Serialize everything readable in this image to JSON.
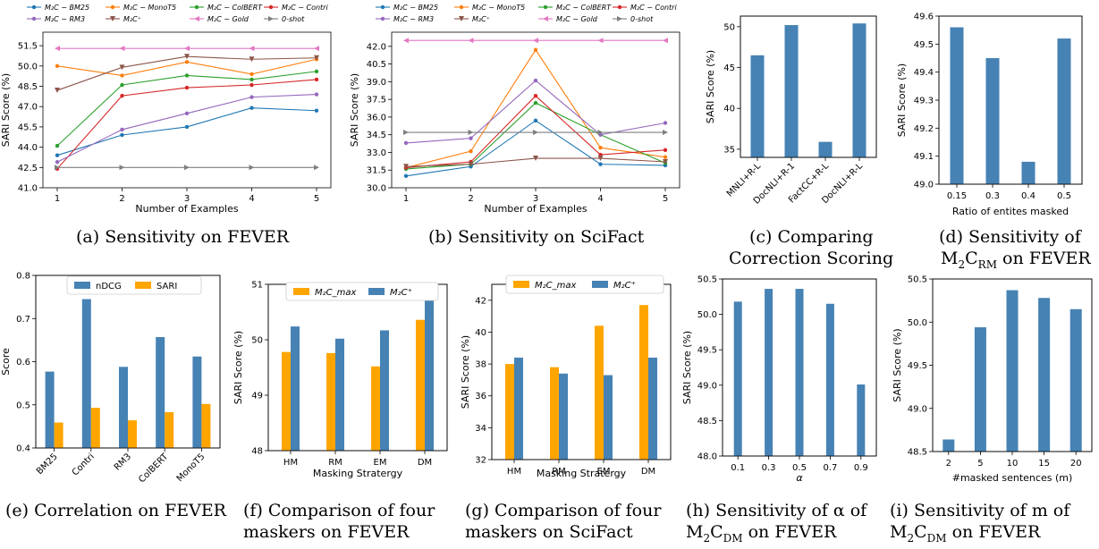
{
  "colors": {
    "bm25": "#1f77b4",
    "monot5": "#ff7f0e",
    "colbert": "#2ca02c",
    "contri": "#d62728",
    "rm3": "#9467bd",
    "m2cplus": "#8c564b",
    "gold": "#e377c2",
    "zeroshot": "#7f7f7f",
    "bar_blue": "#4682b4",
    "bar_orange": "#ffa500"
  },
  "captions": {
    "a": "(a) Sensitivity on FEVER",
    "b": "(b) Sensitivity on SciFact",
    "c1": "(c) Comparing",
    "c2": "Correction Scoring",
    "d1": "(d) Sensitivity of",
    "d2": "M₂C_RM on FEVER",
    "e": "(e) Correlation on FEVER",
    "f1": "(f) Comparison of four",
    "f2": "maskers on FEVER",
    "g1": "(g) Comparison of four",
    "g2": "maskers on SciFact",
    "h1": "(h) Sensitivity of α of",
    "h2": "M₂C_DM on FEVER",
    "i1": "(i) Sensitivity of m of",
    "i2": "M₂C_DM on FEVER"
  },
  "chart_data": [
    {
      "id": "a",
      "type": "line",
      "xlabel": "Number of Examples",
      "ylabel": "SARI Score (%)",
      "x": [
        1,
        2,
        3,
        4,
        5
      ],
      "ylim": [
        41.0,
        52.5
      ],
      "yticks": [
        41.0,
        42.5,
        44.0,
        45.5,
        47.0,
        48.5,
        50.0,
        51.5
      ],
      "legend": [
        "M₂C − BM25",
        "M₂C − MonoT5",
        "M₂C − ColBERT",
        "M₂C − Contri",
        "M₂C − RM3",
        "M₂C⁺",
        "M₂C − Gold",
        "0-shot"
      ],
      "series": [
        {
          "name": "M₂C − BM25",
          "key": "bm25",
          "marker": "circle",
          "values": [
            43.4,
            44.9,
            45.5,
            46.9,
            46.7
          ]
        },
        {
          "name": "M₂C − MonoT5",
          "key": "monot5",
          "marker": "circle",
          "values": [
            50.0,
            49.3,
            50.3,
            49.4,
            50.5
          ]
        },
        {
          "name": "M₂C − ColBERT",
          "key": "colbert",
          "marker": "circle",
          "values": [
            44.1,
            48.6,
            49.3,
            49.0,
            49.6
          ]
        },
        {
          "name": "M₂C − Contri",
          "key": "contri",
          "marker": "circle",
          "values": [
            42.4,
            47.8,
            48.4,
            48.6,
            49.0
          ]
        },
        {
          "name": "M₂C − RM3",
          "key": "rm3",
          "marker": "circle",
          "values": [
            42.9,
            45.3,
            46.5,
            47.7,
            47.9
          ]
        },
        {
          "name": "M₂C⁺",
          "key": "m2cplus",
          "marker": "triangle-down",
          "values": [
            48.2,
            49.9,
            50.7,
            50.5,
            50.6
          ]
        },
        {
          "name": "M₂C − Gold",
          "key": "gold",
          "marker": "triangle-left",
          "values": [
            51.3,
            51.3,
            51.3,
            51.3,
            51.3
          ]
        },
        {
          "name": "0-shot",
          "key": "zeroshot",
          "marker": "triangle-right",
          "values": [
            42.5,
            42.5,
            42.5,
            42.5,
            42.5
          ]
        }
      ]
    },
    {
      "id": "b",
      "type": "line",
      "xlabel": "Number of Examples",
      "ylabel": "SARI Score (%)",
      "x": [
        1,
        2,
        3,
        4,
        5
      ],
      "ylim": [
        30.0,
        43.2
      ],
      "yticks": [
        30.0,
        31.5,
        33.0,
        34.5,
        36.0,
        37.5,
        39.0,
        40.5,
        42.0
      ],
      "legend": [
        "M₂C − BM25",
        "M₂C − MonoT5",
        "M₂C − ColBERT",
        "M₂C − Contri",
        "M₂C − RM3",
        "M₂C⁺",
        "M₂C − Gold",
        "0-shot"
      ],
      "series": [
        {
          "name": "M₂C − BM25",
          "key": "bm25",
          "marker": "circle",
          "values": [
            31.0,
            31.8,
            35.7,
            32.0,
            31.9
          ]
        },
        {
          "name": "M₂C − MonoT5",
          "key": "monot5",
          "marker": "circle",
          "values": [
            31.7,
            33.1,
            41.7,
            33.4,
            32.6
          ]
        },
        {
          "name": "M₂C − ColBERT",
          "key": "colbert",
          "marker": "circle",
          "values": [
            31.6,
            32.0,
            37.2,
            34.5,
            32.1
          ]
        },
        {
          "name": "M₂C − Contri",
          "key": "contri",
          "marker": "circle",
          "values": [
            31.7,
            32.2,
            37.8,
            32.8,
            33.2
          ]
        },
        {
          "name": "M₂C − RM3",
          "key": "rm3",
          "marker": "circle",
          "values": [
            33.8,
            34.2,
            39.1,
            34.5,
            35.5
          ]
        },
        {
          "name": "M₂C⁺",
          "key": "m2cplus",
          "marker": "triangle-down",
          "values": [
            31.8,
            32.0,
            32.5,
            32.5,
            32.2
          ]
        },
        {
          "name": "M₂C − Gold",
          "key": "gold",
          "marker": "triangle-left",
          "values": [
            42.5,
            42.5,
            42.5,
            42.5,
            42.5
          ]
        },
        {
          "name": "0-shot",
          "key": "zeroshot",
          "marker": "triangle-right",
          "values": [
            34.7,
            34.7,
            34.7,
            34.7,
            34.7
          ]
        }
      ]
    },
    {
      "id": "c",
      "type": "bar",
      "ylabel": "SARI Score (%)",
      "categories": [
        "MNLI+R-L",
        "DocNLI+R-1",
        "FactCC+R-L",
        "DocNLI+R-L"
      ],
      "values": [
        46.5,
        50.2,
        35.9,
        50.4
      ],
      "ylim": [
        34.0,
        51.3
      ],
      "yticks": [
        35,
        40,
        45,
        50
      ]
    },
    {
      "id": "d",
      "type": "bar",
      "ylabel": "SARI Score (%)",
      "xlabel": "Ratio of entites masked",
      "categories": [
        "0.15",
        "0.3",
        "0.4",
        "0.5"
      ],
      "values": [
        49.56,
        49.45,
        49.08,
        49.52
      ],
      "ylim": [
        49.0,
        49.6
      ],
      "yticks": [
        49.0,
        49.1,
        49.2,
        49.3,
        49.4,
        49.5,
        49.6
      ]
    },
    {
      "id": "e",
      "type": "bar",
      "ylabel": "Score",
      "categories": [
        "BM25",
        "Contri",
        "RM3",
        "ColBERT",
        "MonoT5"
      ],
      "series": [
        {
          "name": "nDCG",
          "key": "bar_blue",
          "values": [
            0.577,
            0.745,
            0.588,
            0.657,
            0.612
          ]
        },
        {
          "name": "SARI",
          "key": "bar_orange",
          "values": [
            0.459,
            0.493,
            0.464,
            0.483,
            0.502
          ]
        }
      ],
      "ylim": [
        0.4,
        0.8
      ],
      "yticks": [
        0.4,
        0.5,
        0.6,
        0.7,
        0.8
      ]
    },
    {
      "id": "f",
      "type": "bar",
      "ylabel": "SARI Score (%)",
      "xlabel": "Masking Stratergy",
      "categories": [
        "HM",
        "RM",
        "EM",
        "DM"
      ],
      "series": [
        {
          "name": "M₂C_max",
          "key": "bar_orange",
          "values": [
            49.78,
            49.76,
            49.52,
            50.36
          ]
        },
        {
          "name": "M₂C⁺",
          "key": "bar_blue",
          "values": [
            50.24,
            50.02,
            50.17,
            50.71
          ]
        }
      ],
      "ylim": [
        48.0,
        51.0
      ],
      "yticks": [
        48,
        49,
        50,
        51
      ]
    },
    {
      "id": "g",
      "type": "bar",
      "ylabel": "SARI Score (%)",
      "xlabel": "Masking Stratergy",
      "categories": [
        "HM",
        "RM",
        "EM",
        "DM"
      ],
      "series": [
        {
          "name": "M₂C_max",
          "key": "bar_orange",
          "values": [
            38.0,
            37.8,
            40.4,
            41.7
          ]
        },
        {
          "name": "M₂C⁺",
          "key": "bar_blue",
          "values": [
            38.4,
            37.4,
            37.3,
            38.4
          ]
        }
      ],
      "ylim": [
        32.0,
        43.0
      ],
      "yticks": [
        32,
        34,
        36,
        38,
        40,
        42
      ]
    },
    {
      "id": "h",
      "type": "bar",
      "ylabel": "SARI Score (%)",
      "xlabel": "α",
      "categories": [
        "0.1",
        "0.3",
        "0.5",
        "0.7",
        "0.9"
      ],
      "values": [
        50.18,
        50.36,
        50.36,
        50.15,
        49.01
      ],
      "ylim": [
        48.0,
        50.5
      ],
      "yticks": [
        48.0,
        48.5,
        49.0,
        49.5,
        50.0,
        50.5
      ]
    },
    {
      "id": "i",
      "type": "bar",
      "ylabel": "SARI Score (%)",
      "xlabel": "#masked sentences (m)",
      "categories": [
        "2",
        "5",
        "10",
        "15",
        "20"
      ],
      "values": [
        48.64,
        49.94,
        50.37,
        50.28,
        50.15
      ],
      "ylim": [
        48.5,
        50.5
      ],
      "yticks": [
        48.5,
        49.0,
        49.5,
        50.0,
        50.5
      ]
    }
  ]
}
